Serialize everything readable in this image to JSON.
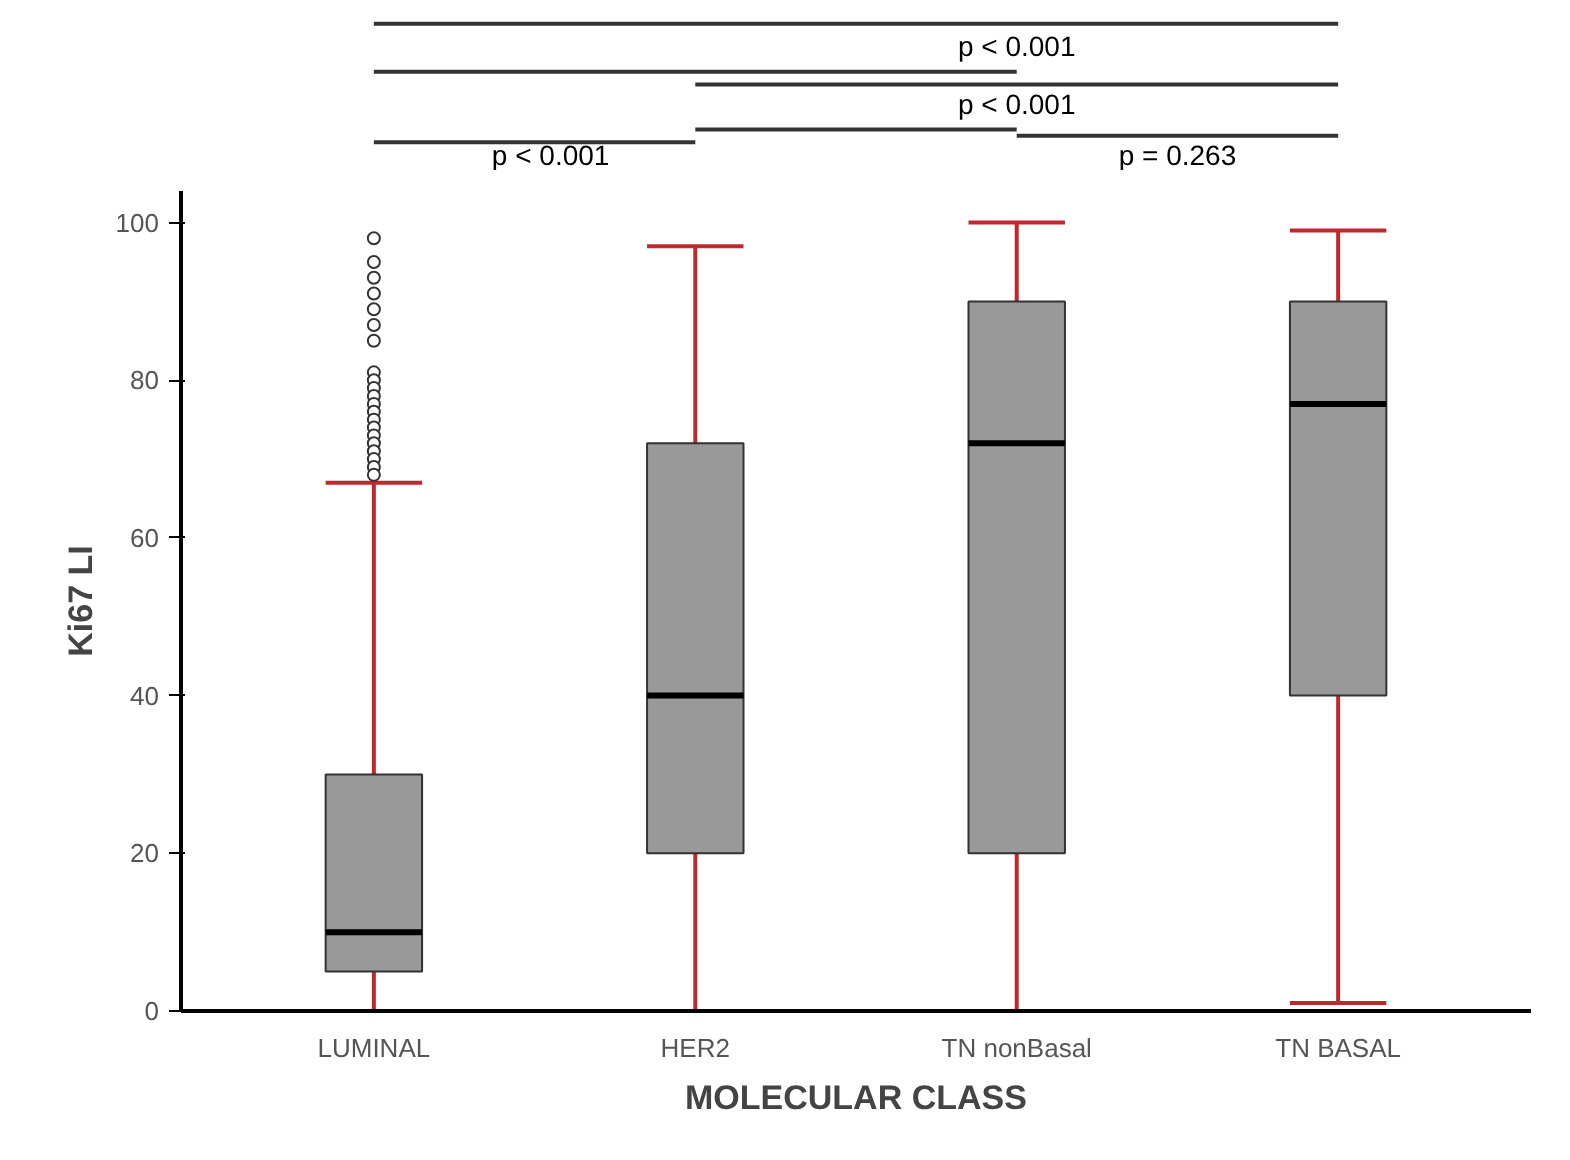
{
  "chart_data": {
    "type": "box",
    "xlabel": "MOLECULAR CLASS",
    "ylabel": "Ki67 LI",
    "categories": [
      "LUMINAL",
      "HER2",
      "TN nonBasal",
      "TN BASAL"
    ],
    "boxes": [
      {
        "low": 0,
        "q1": 5,
        "median": 10,
        "q3": 30,
        "high": 67,
        "outliers": [
          98,
          95,
          93,
          91,
          89,
          87,
          85,
          81,
          80,
          79,
          78,
          77,
          76,
          75,
          74,
          73,
          72,
          71,
          70,
          69,
          68
        ]
      },
      {
        "low": 0,
        "q1": 20,
        "median": 40,
        "q3": 72,
        "high": 97
      },
      {
        "low": 0,
        "q1": 20,
        "median": 72,
        "q3": 90,
        "high": 100
      },
      {
        "low": 1,
        "q1": 40,
        "median": 77,
        "q3": 90,
        "high": 99
      }
    ],
    "color": "#999999",
    "ylim": [
      0,
      104
    ],
    "yticks": [
      0,
      20,
      40,
      60,
      80,
      100
    ],
    "grid": false,
    "annotations": [
      "p < 0.001",
      "p < 0.001",
      "p < 0.001",
      "p = 0.263"
    ]
  }
}
